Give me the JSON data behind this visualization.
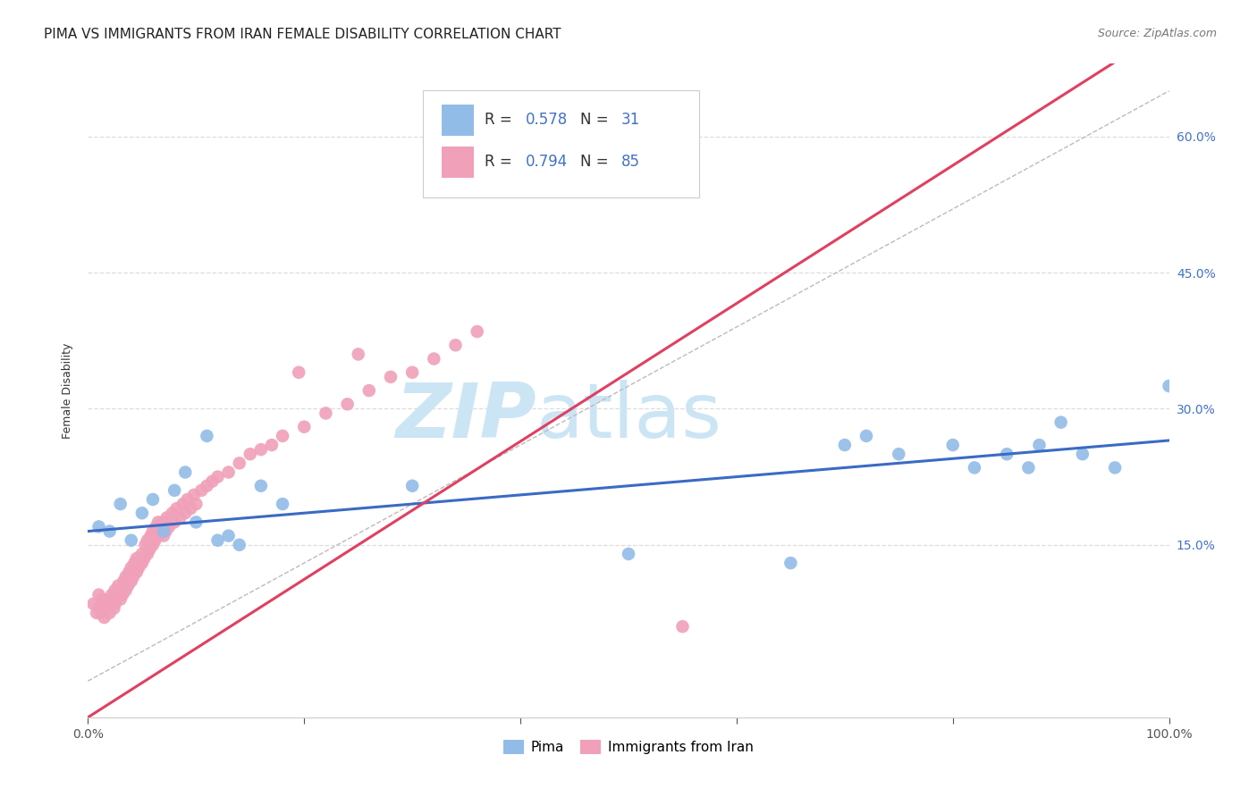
{
  "title": "PIMA VS IMMIGRANTS FROM IRAN FEMALE DISABILITY CORRELATION CHART",
  "source": "Source: ZipAtlas.com",
  "ylabel": "Female Disability",
  "xlim": [
    0.0,
    1.0
  ],
  "ylim": [
    -0.04,
    0.68
  ],
  "ytick_positions": [
    0.15,
    0.3,
    0.45,
    0.6
  ],
  "ytick_labels": [
    "15.0%",
    "30.0%",
    "45.0%",
    "60.0%"
  ],
  "pima_color": "#92bce8",
  "iran_color": "#f0a0b8",
  "pima_line_color": "#3a6bc4",
  "iran_line_color": "#e04060",
  "trend_line_dashed_color": "#bbbbbb",
  "R_pima": 0.578,
  "N_pima": 31,
  "R_iran": 0.794,
  "N_iran": 85,
  "pima_x": [
    0.01,
    0.02,
    0.03,
    0.04,
    0.05,
    0.06,
    0.07,
    0.08,
    0.09,
    0.1,
    0.11,
    0.12,
    0.13,
    0.14,
    0.16,
    0.18,
    0.3,
    0.5,
    0.65,
    0.7,
    0.72,
    0.75,
    0.8,
    0.82,
    0.85,
    0.87,
    0.88,
    0.9,
    0.92,
    0.95,
    1.0
  ],
  "pima_y": [
    0.17,
    0.165,
    0.195,
    0.155,
    0.185,
    0.2,
    0.165,
    0.21,
    0.23,
    0.175,
    0.27,
    0.155,
    0.16,
    0.15,
    0.215,
    0.195,
    0.215,
    0.14,
    0.13,
    0.26,
    0.27,
    0.25,
    0.26,
    0.235,
    0.25,
    0.235,
    0.26,
    0.285,
    0.25,
    0.235,
    0.325
  ],
  "iran_x": [
    0.005,
    0.008,
    0.01,
    0.01,
    0.012,
    0.013,
    0.015,
    0.015,
    0.018,
    0.02,
    0.02,
    0.022,
    0.022,
    0.024,
    0.025,
    0.025,
    0.027,
    0.028,
    0.03,
    0.03,
    0.032,
    0.033,
    0.035,
    0.035,
    0.037,
    0.038,
    0.04,
    0.04,
    0.042,
    0.043,
    0.045,
    0.045,
    0.047,
    0.05,
    0.05,
    0.052,
    0.053,
    0.055,
    0.055,
    0.057,
    0.058,
    0.06,
    0.06,
    0.062,
    0.063,
    0.065,
    0.065,
    0.067,
    0.07,
    0.07,
    0.072,
    0.073,
    0.075,
    0.078,
    0.08,
    0.082,
    0.085,
    0.088,
    0.09,
    0.092,
    0.095,
    0.098,
    0.1,
    0.105,
    0.11,
    0.115,
    0.12,
    0.13,
    0.14,
    0.15,
    0.16,
    0.17,
    0.18,
    0.2,
    0.22,
    0.24,
    0.26,
    0.28,
    0.3,
    0.32,
    0.34,
    0.36,
    0.55,
    0.25,
    0.195
  ],
  "iran_y": [
    0.085,
    0.075,
    0.095,
    0.08,
    0.075,
    0.09,
    0.085,
    0.07,
    0.08,
    0.09,
    0.075,
    0.085,
    0.095,
    0.08,
    0.1,
    0.085,
    0.095,
    0.105,
    0.09,
    0.1,
    0.095,
    0.11,
    0.1,
    0.115,
    0.105,
    0.12,
    0.11,
    0.125,
    0.115,
    0.13,
    0.12,
    0.135,
    0.125,
    0.13,
    0.14,
    0.135,
    0.15,
    0.14,
    0.155,
    0.145,
    0.16,
    0.15,
    0.165,
    0.155,
    0.17,
    0.16,
    0.175,
    0.165,
    0.16,
    0.175,
    0.165,
    0.18,
    0.17,
    0.185,
    0.175,
    0.19,
    0.18,
    0.195,
    0.185,
    0.2,
    0.19,
    0.205,
    0.195,
    0.21,
    0.215,
    0.22,
    0.225,
    0.23,
    0.24,
    0.25,
    0.255,
    0.26,
    0.27,
    0.28,
    0.295,
    0.305,
    0.32,
    0.335,
    0.34,
    0.355,
    0.37,
    0.385,
    0.06,
    0.36,
    0.34
  ],
  "background_color": "#ffffff",
  "grid_color": "#dddddd",
  "watermark_zip": "ZIP",
  "watermark_atlas": "atlas",
  "watermark_color": "#cce5f5",
  "title_fontsize": 11,
  "axis_label_fontsize": 9,
  "tick_fontsize": 10,
  "legend_fontsize": 12
}
